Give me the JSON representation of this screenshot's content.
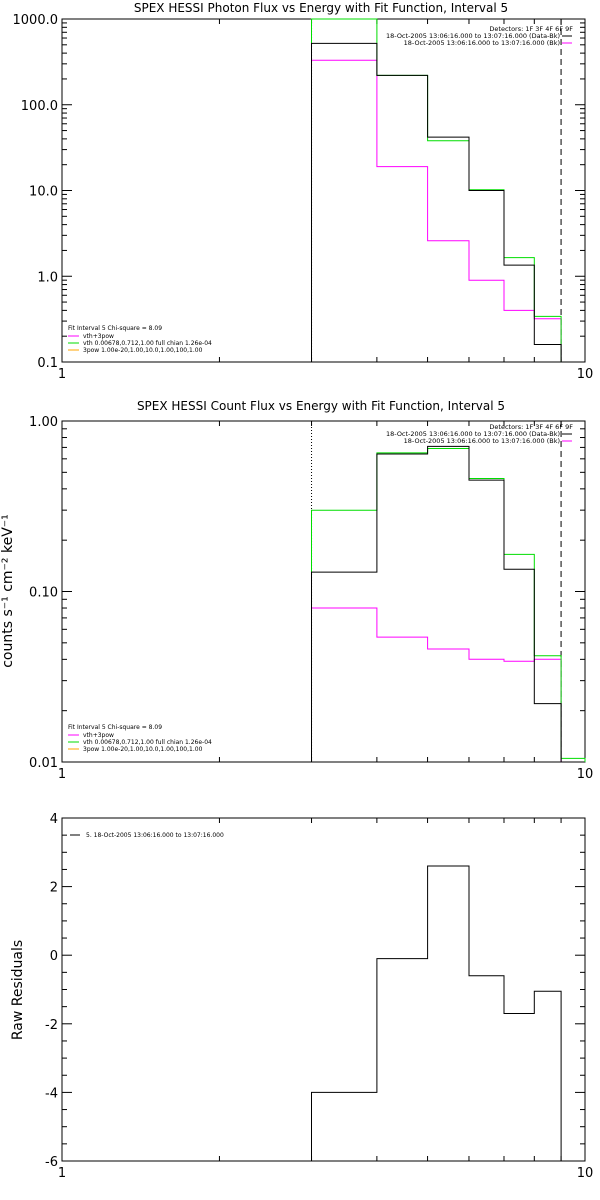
{
  "colors": {
    "data": "#000000",
    "background": "#ff00ff",
    "fit": "#00dd00",
    "component": "#ffa500"
  },
  "chart_data": [
    {
      "type": "line",
      "title": "SPEX HESSI Photon Flux vs Energy with Fit Function, Interval 5",
      "xlabel": "",
      "ylabel": "",
      "xscale": "log",
      "yscale": "log",
      "xlim": [
        1,
        10
      ],
      "ylim": [
        0.1,
        1000
      ],
      "xticklabels": [
        {
          "v": 1,
          "label": "1"
        },
        {
          "v": 10,
          "label": "10"
        }
      ],
      "yticklabels": [
        {
          "v": 0.1,
          "label": "0.1"
        },
        {
          "v": 1,
          "label": "1.0"
        },
        {
          "v": 10,
          "label": "10.0"
        },
        {
          "v": 100,
          "label": "100.0"
        },
        {
          "v": 1000,
          "label": "1000.0"
        }
      ],
      "vlines": [
        {
          "x": 3.0,
          "style": "dotted"
        },
        {
          "x": 9.0,
          "style": "dashed"
        }
      ],
      "edges": [
        3.0,
        4.0,
        5.0,
        6.0,
        7.0,
        8.0,
        9.0
      ],
      "series": [
        {
          "name": "18-Oct-2005 13:06:16.000 to 13:07:16.000 (Data-Bk)",
          "color": "#000000",
          "values": [
            520,
            220,
            42,
            10,
            1.35,
            0.16
          ]
        },
        {
          "name": "18-Oct-2005 13:06:16.000 to 13:07:16.000 (Bk)",
          "color": "#ff00ff",
          "values": [
            330,
            19,
            2.6,
            0.9,
            0.4,
            0.32
          ]
        },
        {
          "name": "vth 0.00678,0.712,1.00  full chian 1.26e-04",
          "color": "#00dd00",
          "values": [
            1000,
            220,
            38,
            10.2,
            1.65,
            0.34
          ]
        }
      ],
      "top_legend": {
        "header": "Detectors: 1F 3F 4F 6F 9F",
        "entries": [
          {
            "text": "18-Oct-2005 13:06:16.000 to 13:07:16.000 (Data-Bk)",
            "color": "#000000"
          },
          {
            "text": "18-Oct-2005 13:06:16.000 to 13:07:16.000 (Bk)",
            "color": "#ff00ff"
          }
        ]
      },
      "fit_legend": {
        "header": "Fit Interval 5   Chi-square = 8.09",
        "entries": [
          {
            "text": "vth+3pow",
            "color": "#ff00ff"
          },
          {
            "text": "vth 0.00678,0.712,1.00  full chian 1.26e-04",
            "color": "#00dd00"
          },
          {
            "text": "3pow 1.00e-20,1.00,10.0,1.00,100,1.00",
            "color": "#ffa500"
          }
        ]
      }
    },
    {
      "type": "line",
      "title": "SPEX HESSI Count Flux vs Energy with Fit Function, Interval 5",
      "xlabel": "",
      "ylabel": "counts s⁻¹ cm⁻² keV⁻¹",
      "xscale": "log",
      "yscale": "log",
      "xlim": [
        1,
        10
      ],
      "ylim": [
        0.01,
        1.0
      ],
      "xticklabels": [
        {
          "v": 1,
          "label": "1"
        },
        {
          "v": 10,
          "label": "10"
        }
      ],
      "yticklabels": [
        {
          "v": 0.01,
          "label": "0.01"
        },
        {
          "v": 0.1,
          "label": "0.10"
        },
        {
          "v": 1,
          "label": "1.00"
        }
      ],
      "vlines": [
        {
          "x": 3.0,
          "style": "dotted"
        },
        {
          "x": 9.0,
          "style": "dashed"
        }
      ],
      "edges": [
        3.0,
        4.0,
        5.0,
        6.0,
        7.0,
        8.0,
        9.0,
        10.0
      ],
      "series": [
        {
          "name": "Data-Bk",
          "color": "#000000",
          "values": [
            0.13,
            0.64,
            0.71,
            0.45,
            0.135,
            0.022,
            null
          ]
        },
        {
          "name": "Bk",
          "color": "#ff00ff",
          "values": [
            0.08,
            0.054,
            0.046,
            0.04,
            0.039,
            0.04,
            null
          ]
        },
        {
          "name": "Fit",
          "color": "#00dd00",
          "values": [
            0.3,
            0.65,
            0.69,
            0.46,
            0.165,
            0.042,
            0.0105
          ]
        }
      ],
      "top_legend": {
        "header": "Detectors: 1F 3F 4F 6F 9F",
        "entries": [
          {
            "text": "18-Oct-2005 13:06:16.000 to 13:07:16.000 (Data-Bk)",
            "color": "#000000"
          },
          {
            "text": "18-Oct-2005 13:06:16.000 to 13:07:16.000 (Bk)",
            "color": "#ff00ff"
          }
        ]
      },
      "fit_legend": {
        "header": "Fit Interval 5   Chi-square = 8.09",
        "entries": [
          {
            "text": "vth+3pow",
            "color": "#ff00ff"
          },
          {
            "text": "vth 0.00678,0.712,1.00  full chian 1.26e-04",
            "color": "#00dd00"
          },
          {
            "text": "3pow 1.00e-20,1.00,10.0,1.00,100,1.00",
            "color": "#ffa500"
          }
        ]
      }
    },
    {
      "type": "line",
      "title": "",
      "xlabel": "",
      "ylabel": "Raw Residuals",
      "xscale": "log",
      "yscale": "linear",
      "xlim": [
        1,
        10
      ],
      "ylim": [
        -6,
        4
      ],
      "xticklabels": [
        {
          "v": 1,
          "label": "1"
        },
        {
          "v": 10,
          "label": "10"
        }
      ],
      "yticklabels": [
        {
          "v": -6,
          "label": "-6"
        },
        {
          "v": -4,
          "label": "-4"
        },
        {
          "v": -2,
          "label": "-2"
        },
        {
          "v": 0,
          "label": "0"
        },
        {
          "v": 2,
          "label": "2"
        },
        {
          "v": 4,
          "label": "4"
        }
      ],
      "edges": [
        3.0,
        4.0,
        5.0,
        6.0,
        7.0,
        8.0,
        9.0
      ],
      "series": [
        {
          "name": "5. 18-Oct-2005 13:06:16.000 to 13:07:16.000",
          "color": "#000000",
          "values": [
            -4.0,
            -0.1,
            2.6,
            -0.6,
            -1.7,
            -1.05
          ]
        }
      ],
      "legend": {
        "text": "5. 18-Oct-2005 13:06:16.000 to 13:07:16.000",
        "color": "#000000"
      }
    }
  ]
}
